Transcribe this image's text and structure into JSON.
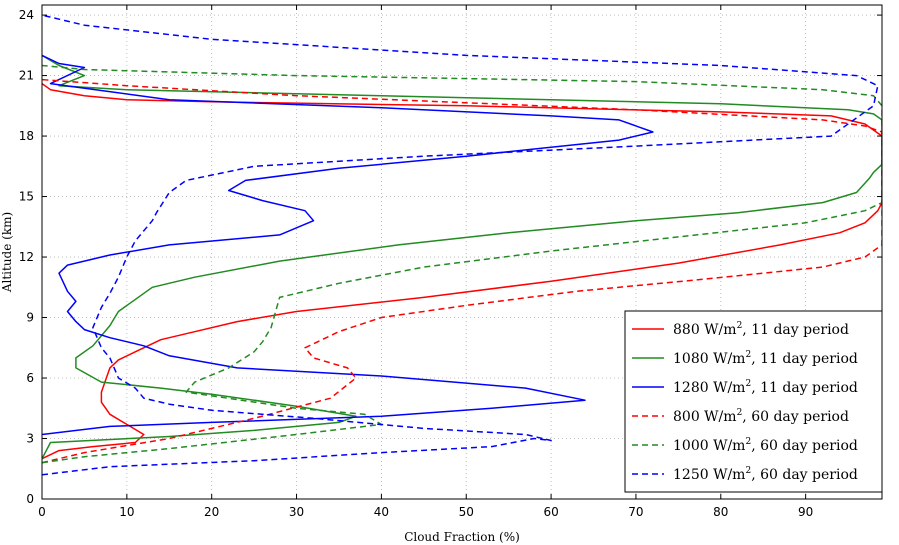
{
  "chart_data": {
    "type": "line",
    "xlabel": "Cloud Fraction (%)",
    "ylabel": "Altitude (km)",
    "xlim": [
      0,
      99
    ],
    "ylim": [
      0,
      24.5
    ],
    "xticks": [
      "0",
      "10",
      "20",
      "30",
      "40",
      "50",
      "60",
      "70",
      "80",
      "90"
    ],
    "yticks": [
      "0",
      "3",
      "6",
      "9",
      "12",
      "15",
      "18",
      "21",
      "24"
    ],
    "grid": true,
    "legend_position": "bottom-right",
    "series": [
      {
        "name": "880 W/m², 11 day period",
        "label_main": "880 W/m",
        "label_sup": "2",
        "label_tail": ", 11 day period",
        "color": "#ff0000",
        "dash": "solid",
        "x": [
          0,
          2,
          6,
          11,
          12,
          10,
          8,
          7,
          7,
          8,
          9,
          11,
          14,
          17,
          23,
          30,
          45,
          60,
          75,
          87,
          94,
          97,
          98.5,
          99,
          99,
          99,
          99,
          97,
          93,
          80,
          50,
          20,
          10,
          5,
          1,
          0
        ],
        "y": [
          2.0,
          2.4,
          2.6,
          2.8,
          3.2,
          3.7,
          4.2,
          4.8,
          5.3,
          6.5,
          6.9,
          7.3,
          7.9,
          8.2,
          8.8,
          9.3,
          10.0,
          10.8,
          11.7,
          12.6,
          13.2,
          13.7,
          14.3,
          14.7,
          15.5,
          16.5,
          18.0,
          18.6,
          19.0,
          19.2,
          19.5,
          19.7,
          19.8,
          20.0,
          20.3,
          20.6
        ]
      },
      {
        "name": "1080 W/m², 11 day period",
        "label_main": "1080 W/m",
        "label_sup": "2",
        "label_tail": ", 11 day period",
        "color": "#228b22",
        "dash": "solid",
        "x": [
          0,
          1,
          15,
          25,
          35,
          37,
          30,
          20,
          14,
          7,
          4,
          4,
          6,
          8,
          9,
          13,
          18,
          28,
          42,
          55,
          70,
          82,
          92,
          96,
          97.5,
          98,
          99,
          99,
          99,
          99,
          98,
          95,
          80,
          40,
          10,
          2,
          5,
          2,
          0
        ],
        "y": [
          2.0,
          2.8,
          3.1,
          3.4,
          3.8,
          4.1,
          4.6,
          5.2,
          5.5,
          5.8,
          6.5,
          7.0,
          7.6,
          8.6,
          9.3,
          10.5,
          11.0,
          11.8,
          12.6,
          13.2,
          13.8,
          14.2,
          14.7,
          15.2,
          15.9,
          16.2,
          16.6,
          17.3,
          18.0,
          18.8,
          19.1,
          19.3,
          19.6,
          20.0,
          20.3,
          20.5,
          21.0,
          21.5,
          22.0
        ]
      },
      {
        "name": "1280 W/m², 11 day period",
        "label_main": "1280 W/m",
        "label_sup": "2",
        "label_tail": ", 11 day period",
        "color": "#0000ff",
        "dash": "solid",
        "x": [
          0,
          8,
          20,
          40,
          53,
          64,
          57,
          40,
          23,
          15,
          12,
          8,
          5,
          4,
          3,
          4,
          3,
          2,
          3,
          8,
          15,
          28,
          32,
          31,
          26,
          22,
          24,
          35,
          50,
          68,
          72,
          68,
          60,
          40,
          15,
          1,
          5,
          2,
          0
        ],
        "y": [
          3.2,
          3.6,
          3.8,
          4.1,
          4.5,
          4.9,
          5.5,
          6.1,
          6.5,
          7.1,
          7.6,
          8.0,
          8.4,
          8.8,
          9.3,
          9.8,
          10.3,
          11.2,
          11.6,
          12.1,
          12.6,
          13.1,
          13.8,
          14.3,
          14.8,
          15.3,
          15.8,
          16.4,
          17.0,
          17.8,
          18.2,
          18.8,
          19.0,
          19.4,
          19.8,
          20.6,
          21.4,
          21.6,
          22.0
        ]
      },
      {
        "name": "800 W/m², 60 day period",
        "label_main": "800 W/m",
        "label_sup": "2",
        "label_tail": ", 60 day period",
        "color": "#ff0000",
        "dash": "dashed",
        "x": [
          0,
          5,
          15,
          25,
          34,
          37,
          36,
          32,
          31,
          35,
          40,
          50,
          63,
          78,
          92,
          97,
          99,
          99,
          99,
          97,
          92,
          70,
          30,
          10,
          0
        ],
        "y": [
          1.8,
          2.3,
          3.0,
          4.0,
          5.0,
          6.0,
          6.5,
          7.0,
          7.5,
          8.3,
          9.0,
          9.6,
          10.3,
          10.9,
          11.5,
          12.0,
          12.6,
          13.5,
          18.2,
          18.5,
          18.8,
          19.3,
          20.0,
          20.5,
          20.8
        ]
      },
      {
        "name": "1000 W/m², 60 day period",
        "label_main": "1000 W/m",
        "label_sup": "2",
        "label_tail": ", 60 day period",
        "color": "#228b22",
        "dash": "dashed",
        "x": [
          0,
          5,
          15,
          30,
          40,
          38,
          30,
          17,
          18,
          22,
          25,
          26,
          27,
          28,
          35,
          45,
          60,
          75,
          90,
          97,
          99,
          99,
          99,
          98,
          92,
          70,
          30,
          5,
          0
        ],
        "y": [
          1.8,
          2.1,
          2.5,
          3.2,
          3.7,
          4.2,
          4.5,
          5.3,
          5.8,
          6.5,
          7.3,
          7.8,
          8.5,
          10.0,
          10.7,
          11.5,
          12.3,
          13.0,
          13.7,
          14.3,
          14.7,
          17.0,
          19.5,
          20.0,
          20.3,
          20.7,
          21.0,
          21.3,
          21.5
        ]
      },
      {
        "name": "1250 W/m², 60 day period",
        "label_main": "1250 W/m",
        "label_sup": "2",
        "label_tail": ", 60 day period",
        "color": "#0000ff",
        "dash": "dashed",
        "x": [
          0,
          8,
          25,
          40,
          53,
          58,
          60,
          57,
          45,
          32,
          20,
          15,
          12,
          11,
          9,
          8,
          7,
          6,
          7,
          8,
          9,
          10,
          11,
          13,
          13.5,
          15,
          17,
          25,
          45,
          70,
          93,
          98,
          98.5,
          96,
          80,
          50,
          20,
          5,
          0
        ],
        "y": [
          1.2,
          1.6,
          1.9,
          2.3,
          2.6,
          3.0,
          2.9,
          3.2,
          3.5,
          4.0,
          4.4,
          4.7,
          5.0,
          5.5,
          6.0,
          7.0,
          7.5,
          8.5,
          9.5,
          10.2,
          11.0,
          12.0,
          12.8,
          13.8,
          14.2,
          15.2,
          15.8,
          16.5,
          17.0,
          17.5,
          18.0,
          19.5,
          20.5,
          21.0,
          21.5,
          22.0,
          22.8,
          23.5,
          24.0
        ]
      }
    ]
  }
}
